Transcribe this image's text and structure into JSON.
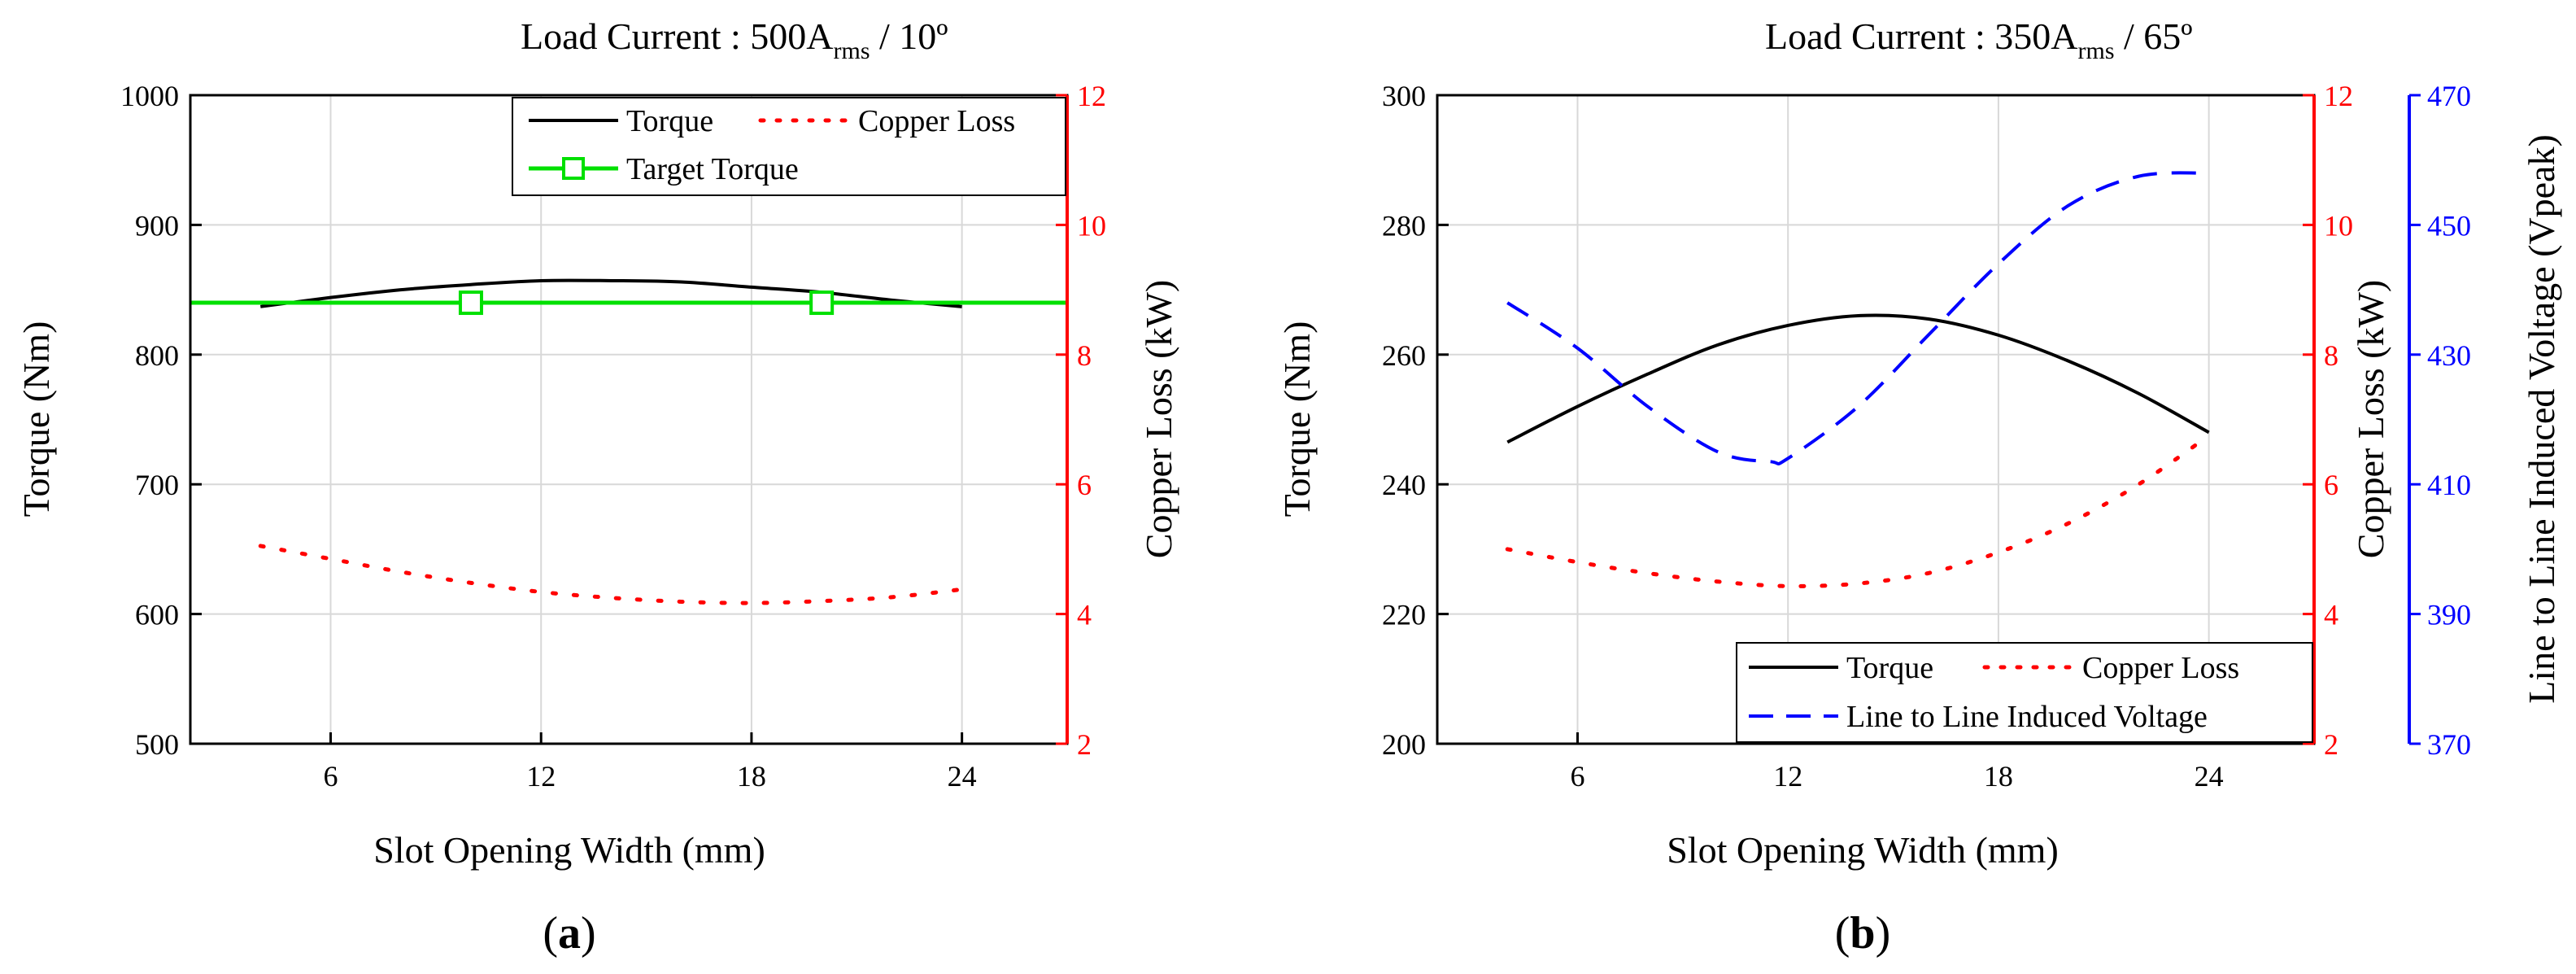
{
  "colors": {
    "torque": "#000000",
    "copper_loss": "#ff0000",
    "target": "#00e000",
    "voltage": "#0000ff",
    "grid": "#d8d8d8"
  },
  "chart_data": [
    {
      "type": "line",
      "panel_label": "(a)",
      "panel_letter": "a",
      "title_main": "Load Current : 500A",
      "title_sub": "rms",
      "title_tail": " / 10º",
      "xlabel": "Slot Opening Width (mm)",
      "ylabel_left": "Torque (Nm)",
      "ylabel_right": "Copper Loss (kW)",
      "xlim": [
        2,
        27
      ],
      "xticks": [
        6,
        12,
        18,
        24
      ],
      "xtick_labels": [
        "6",
        "12",
        "18",
        "24"
      ],
      "ylim_left": [
        500,
        1000
      ],
      "yticks_left": [
        500,
        600,
        700,
        800,
        900,
        1000
      ],
      "ytick_labels_left": [
        "500",
        "600",
        "700",
        "800",
        "900",
        "1000"
      ],
      "ylim_right": [
        2,
        12
      ],
      "yticks_right": [
        2,
        4,
        6,
        8,
        10,
        12
      ],
      "ytick_labels_right": [
        "2",
        "4",
        "6",
        "8",
        "10",
        "12"
      ],
      "series": [
        {
          "name": "Torque",
          "axis": "left",
          "style": "solid",
          "x": [
            4,
            6,
            8,
            10,
            12,
            14,
            16,
            18,
            20,
            22,
            24
          ],
          "y": [
            837,
            844,
            850,
            854,
            857,
            857,
            856,
            852,
            848,
            842,
            837
          ]
        },
        {
          "name": "Copper Loss",
          "axis": "right",
          "style": "dotted",
          "x": [
            4,
            6,
            8,
            10,
            12,
            14,
            16,
            18,
            20,
            22,
            24
          ],
          "y": [
            5.05,
            4.85,
            4.65,
            4.48,
            4.34,
            4.25,
            4.19,
            4.17,
            4.2,
            4.26,
            4.38
          ]
        },
        {
          "name": "Target Torque",
          "axis": "left",
          "style": "solid-marker",
          "x": [
            2,
            27
          ],
          "y": [
            840,
            840
          ],
          "marker_x": [
            10,
            20
          ]
        }
      ],
      "legend": [
        "Torque",
        "Copper Loss",
        "Target Torque"
      ]
    },
    {
      "type": "line",
      "panel_label": "(b)",
      "panel_letter": "b",
      "title_main": "Load Current : 350A",
      "title_sub": "rms",
      "title_tail": " / 65º",
      "xlabel": "Slot Opening Width (mm)",
      "ylabel_left": "Torque (Nm)",
      "ylabel_right": "Copper Loss (kW)",
      "ylabel_right2": "Line to Line Induced Voltage (Vpeak)",
      "xlim": [
        2,
        27
      ],
      "xticks": [
        6,
        12,
        18,
        24
      ],
      "xtick_labels": [
        "6",
        "12",
        "18",
        "24"
      ],
      "ylim_left": [
        200,
        300
      ],
      "yticks_left": [
        200,
        220,
        240,
        260,
        280,
        300
      ],
      "ytick_labels_left": [
        "200",
        "220",
        "240",
        "260",
        "280",
        "300"
      ],
      "ylim_right": [
        2,
        12
      ],
      "yticks_right": [
        2,
        4,
        6,
        8,
        10,
        12
      ],
      "ytick_labels_right": [
        "2",
        "4",
        "6",
        "8",
        "10",
        "12"
      ],
      "ylim_right2": [
        370,
        470
      ],
      "yticks_right2": [
        370,
        390,
        410,
        430,
        450,
        470
      ],
      "ytick_labels_right2": [
        "370",
        "390",
        "410",
        "430",
        "450",
        "470"
      ],
      "series": [
        {
          "name": "Torque",
          "axis": "left",
          "style": "solid",
          "x": [
            4,
            6,
            8,
            10,
            12,
            14,
            16,
            18,
            20,
            22,
            24
          ],
          "y": [
            246.5,
            252,
            257,
            261.5,
            264.5,
            266,
            265.5,
            263,
            259,
            254,
            248
          ]
        },
        {
          "name": "Copper Loss",
          "axis": "right",
          "style": "dotted",
          "x": [
            4,
            6,
            8,
            10,
            12,
            14,
            16,
            18,
            20,
            22,
            24
          ],
          "y": [
            5.0,
            4.8,
            4.63,
            4.5,
            4.43,
            4.47,
            4.63,
            4.95,
            5.4,
            6.0,
            6.75
          ]
        },
        {
          "name": "Line to Line Induced Voltage",
          "axis": "right2",
          "style": "dashed",
          "x": [
            4,
            6,
            8,
            10,
            11.5,
            12,
            14,
            16,
            18,
            20,
            22,
            24
          ],
          "y": [
            438,
            431,
            422,
            415,
            413.5,
            414,
            422,
            433,
            444,
            453,
            457.5,
            458
          ]
        }
      ],
      "legend": [
        "Torque",
        "Copper Loss",
        "Line to Line Induced Voltage"
      ]
    }
  ]
}
